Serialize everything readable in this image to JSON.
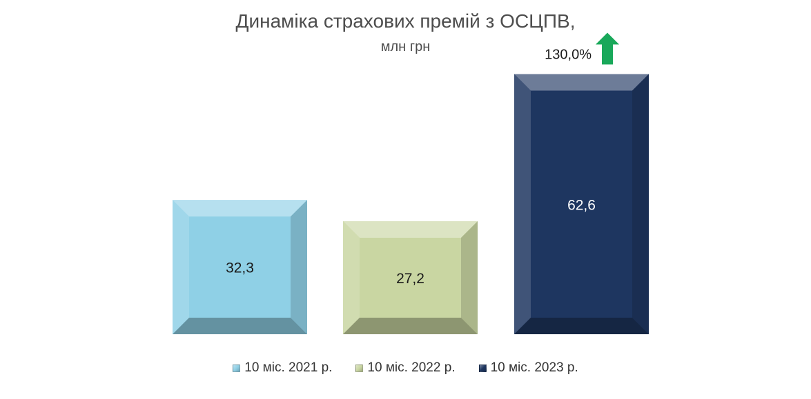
{
  "chart_data": {
    "type": "bar",
    "title": "Динаміка страхових премій з ОСЦПВ,",
    "subtitle": "млн грн",
    "categories": [
      "10 міс. 2021 р.",
      "10 міс. 2022 р.",
      "10 міс. 2023 р."
    ],
    "values": [
      32.3,
      27.2,
      62.6
    ],
    "value_labels": [
      "32,3",
      "27,2",
      "62,6"
    ],
    "colors": [
      "#8fd0e6",
      "#c9d6a2",
      "#1e3660"
    ],
    "label_colors": [
      "#1a1a1a",
      "#1a1a1a",
      "#ffffff"
    ],
    "annotation": {
      "text": "130,0%",
      "icon": "up-arrow-icon",
      "color": "#19a85a",
      "series_index": 2
    },
    "legend": {
      "position": "bottom",
      "items": [
        "10 міс. 2021 р.",
        "10 міс. 2022 р.",
        "10 міс. 2023 р."
      ]
    },
    "ylim": [
      0,
      68
    ],
    "grid": false,
    "xlabel": "",
    "ylabel": ""
  }
}
